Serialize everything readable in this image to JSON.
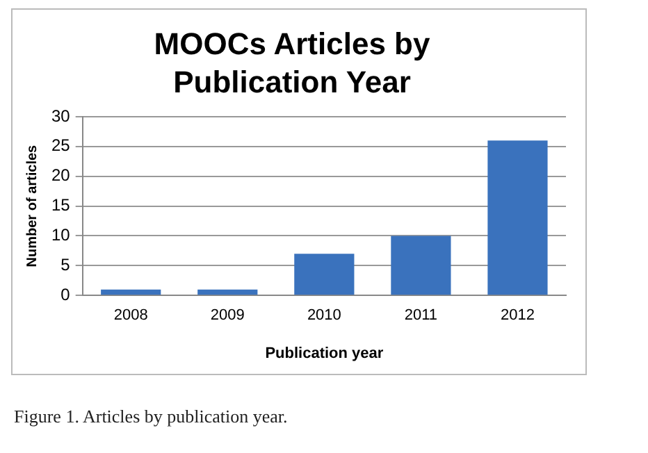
{
  "chart_data": {
    "type": "bar",
    "title": "MOOCs Articles by Publication Year",
    "xlabel": "Publication year",
    "ylabel": "Number of articles",
    "categories": [
      "2008",
      "2009",
      "2010",
      "2011",
      "2012"
    ],
    "values": [
      1,
      1,
      7,
      10,
      26
    ],
    "color": "#3a72bd",
    "ylim": [
      0,
      30
    ],
    "yticks": [
      0,
      5,
      10,
      15,
      20,
      25,
      30
    ],
    "grid": "y",
    "legend": false,
    "annotations": [
      "Figure 1. Articles by publication year."
    ]
  }
}
